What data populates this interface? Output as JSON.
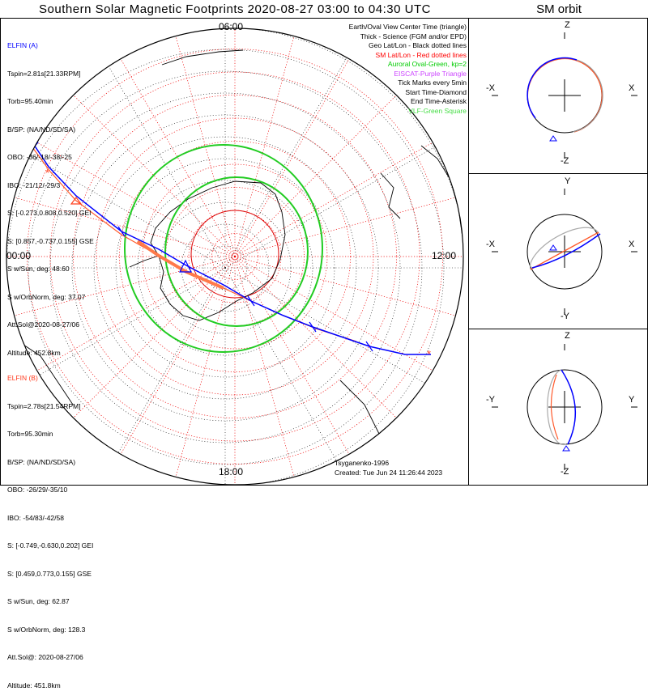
{
  "title": "Southern Solar Magnetic Footprints 2020-08-27 03:00 to 04:30 UTC",
  "sm_title": "SM orbit",
  "clock_labels": {
    "top": "06:00",
    "left": "00:00",
    "right": "12:00",
    "bottom": "18:00"
  },
  "elfin_a": {
    "name": "ELFIN (A)",
    "color": "#0000ff",
    "lines": [
      "Tspin=2.81s[21.33RPM]",
      "Torb=95.40min",
      "B/SP: (NA/ND/SD/SA)",
      "OBO: -36/-18/-38/-25",
      "IBO: -21/12/-29/3",
      "S: [-0.273,0.808,0.520] GEI",
      "S: [0.857,-0.737,0.155] GSE",
      "S w/Sun, deg: 48.60",
      "S w/OrbNorm, deg: 37.07",
      "Att.Sol@2020-08-27/06",
      "Altitude: 452.8km"
    ]
  },
  "elfin_b": {
    "name": "ELFIN (B)",
    "color": "#ff3b1f",
    "lines": [
      "Tspin=2.78s[21.54RPM]",
      "Torb=95.30min",
      "B/SP: (NA/ND/SD/SA)",
      "OBO: -26/29/-35/10",
      "IBO: -54/83/-42/58",
      "S: [-0.749,-0.630,0.202] GEI",
      "S: [0.459,0.773,0.155] GSE",
      "S w/Sun, deg: 62.87",
      "S w/OrbNorm, deg: 128.3",
      "Att.Sol@: 2020-08-27/06",
      "Altitude: 451.8km"
    ]
  },
  "legend": [
    {
      "text": "Earth/Oval View Center Time (triangle)",
      "color": "#000000"
    },
    {
      "text": "Thick - Science (FGM and/or EPD)",
      "color": "#000000"
    },
    {
      "text": "Geo Lat/Lon - Black dotted lines",
      "color": "#000000"
    },
    {
      "text": "SM Lat/Lon - Red dotted lines",
      "color": "#ff0000"
    },
    {
      "text": "Auroral Oval-Green, kp=2",
      "color": "#00cc00"
    },
    {
      "text": "EISCAT-Purple Triangle",
      "color": "#cc44ff"
    },
    {
      "text": "Tick Marks every 5min",
      "color": "#000000"
    },
    {
      "text": "Start Time-Diamond",
      "color": "#000000"
    },
    {
      "text": "End Time-Asterisk",
      "color": "#000000"
    },
    {
      "text": "VLF-Green Square",
      "color": "#44dd44"
    }
  ],
  "credit": {
    "author": "Tsyganenko-1996",
    "created": "Created: Tue Jun 24 11:26:44 2023"
  },
  "sm_panels": [
    {
      "top": "Z",
      "bottom": "-Z",
      "left": "-X",
      "right": "X"
    },
    {
      "top": "Y",
      "bottom": "-Y",
      "left": "-X",
      "right": "X"
    },
    {
      "top": "Z",
      "bottom": "-Z",
      "left": "-Y",
      "right": "Y"
    }
  ]
}
